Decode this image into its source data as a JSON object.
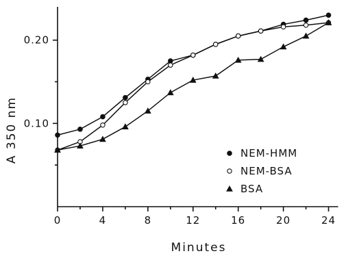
{
  "chart_data": {
    "type": "line",
    "xlabel": "Minutes",
    "ylabel": "A 350 nm",
    "xlim": [
      0,
      25
    ],
    "ylim": [
      0.0,
      0.24
    ],
    "x_ticks": [
      0,
      4,
      8,
      12,
      16,
      20,
      24
    ],
    "x_tick_labels": [
      "0",
      "4",
      "8",
      "12",
      "16",
      "20",
      "24"
    ],
    "y_ticks": [
      0.1,
      0.2
    ],
    "y_tick_labels": [
      "0.10",
      "0.20"
    ],
    "legend_position": "right",
    "series": [
      {
        "name": "NEM-HMM",
        "marker": "filled-circle",
        "x": [
          0,
          2,
          4,
          6,
          8,
          10,
          12,
          14,
          16,
          18,
          20,
          22,
          24
        ],
        "y": [
          0.086,
          0.093,
          0.108,
          0.131,
          0.153,
          0.175,
          0.182,
          0.195,
          0.205,
          0.211,
          0.219,
          0.224,
          0.23
        ]
      },
      {
        "name": "NEM-BSA",
        "marker": "open-circle",
        "x": [
          0,
          2,
          4,
          6,
          8,
          10,
          12,
          14,
          16,
          18,
          20,
          22,
          24
        ],
        "y": [
          0.068,
          0.078,
          0.098,
          0.125,
          0.15,
          0.17,
          0.182,
          0.195,
          0.205,
          0.211,
          0.216,
          0.218,
          0.221
        ]
      },
      {
        "name": "BSA",
        "marker": "filled-triangle",
        "x": [
          0,
          2,
          4,
          6,
          8,
          10,
          12,
          14,
          16,
          18,
          20,
          22,
          24
        ],
        "y": [
          0.068,
          0.073,
          0.081,
          0.096,
          0.115,
          0.137,
          0.152,
          0.157,
          0.176,
          0.177,
          0.192,
          0.205,
          0.221
        ]
      }
    ]
  }
}
